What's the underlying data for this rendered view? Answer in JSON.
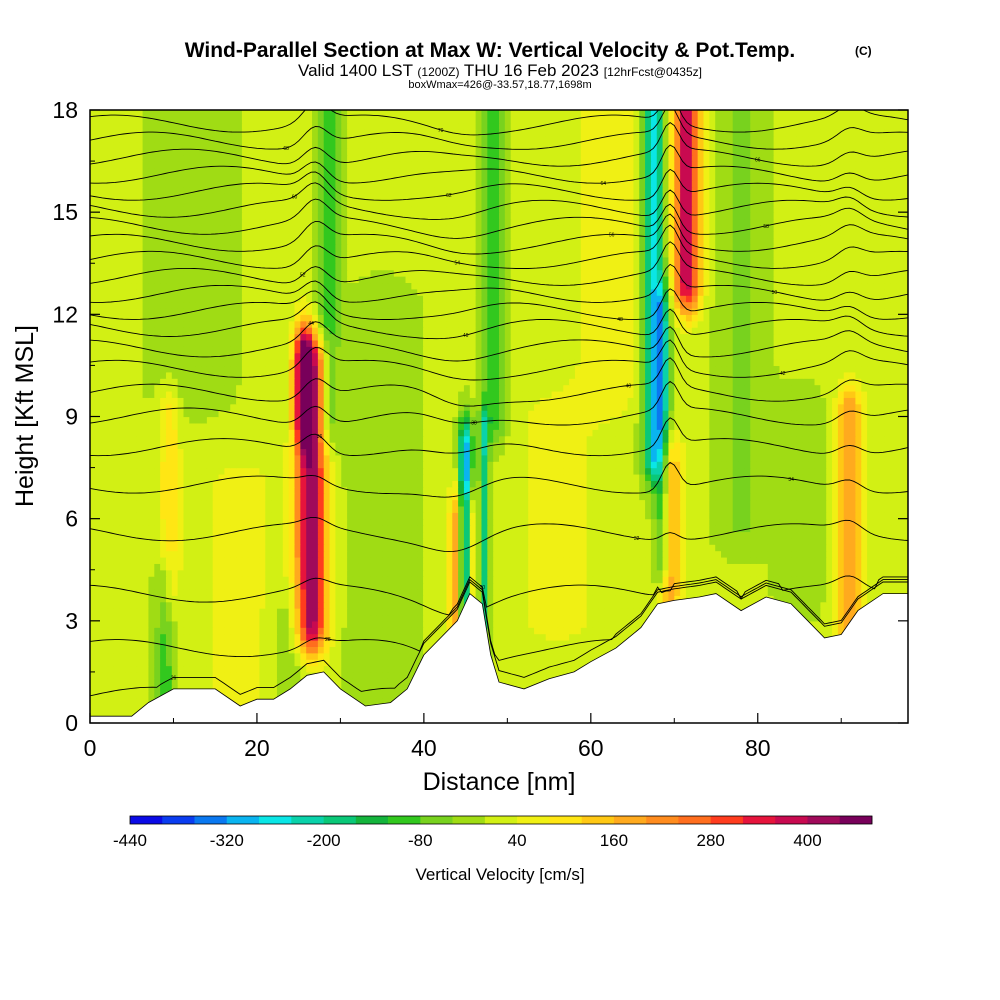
{
  "title": {
    "main": "Wind-Parallel Section at Max W: Vertical Velocity & Pot.Temp.",
    "copyright": "(C)",
    "valid_prefix": "Valid 1400 LST",
    "valid_z": "(1200Z)",
    "valid_date": "THU 16 Feb 2023",
    "forecast": "[12hrFcst@0435z]",
    "box_info": "boxWmax=426@-33.57,18.77,1698m"
  },
  "colorbar": {
    "label": "Vertical Velocity [cm/s]",
    "tick_labels": [
      "-440",
      "-320",
      "-200",
      "-80",
      "40",
      "160",
      "280",
      "400"
    ],
    "colors": [
      "#0a0ae6",
      "#0a3cf0",
      "#0a78f0",
      "#0ab4f0",
      "#0ae6e6",
      "#0ad2aa",
      "#0ac878",
      "#14b43c",
      "#32c81e",
      "#78d21e",
      "#a0dc14",
      "#d2f014",
      "#f0f014",
      "#ffe614",
      "#ffc814",
      "#ffaa1e",
      "#ff8c1e",
      "#ff6e1e",
      "#ff3c1e",
      "#e6143c",
      "#c80a50",
      "#a00a5a",
      "#78005a"
    ]
  },
  "chart_data": {
    "type": "heatmap",
    "title": "Wind-Parallel Section at Max W: Vertical Velocity & Pot.Temp.",
    "xlabel": "Distance [nm]",
    "ylabel": "Height [Kft MSL]",
    "xlim": [
      0,
      98
    ],
    "ylim": [
      0,
      18
    ],
    "x_ticks": [
      0,
      20,
      40,
      60,
      80
    ],
    "y_ticks": [
      0,
      3,
      6,
      9,
      12,
      15,
      18
    ],
    "color_scale": {
      "min": -440,
      "max": 480,
      "step": 40,
      "units": "cm/s"
    },
    "max_w": {
      "value": 426,
      "lat": -33.57,
      "lon": 18.77,
      "height_m": 1698
    },
    "features": [
      {
        "x": 26.5,
        "y_bottom": 3,
        "y_top": 10.5,
        "w": 420,
        "width": 1.8
      },
      {
        "x": 25.5,
        "y_bottom": 9,
        "y_top": 11,
        "w": 240,
        "width": 1.0
      },
      {
        "x": 71.5,
        "y_bottom": 13,
        "y_top": 18,
        "w": 380,
        "width": 1.6
      },
      {
        "x": 69.5,
        "y_bottom": 4,
        "y_top": 7.5,
        "w": 180,
        "width": 1.4
      },
      {
        "x": 91,
        "y_bottom": 3,
        "y_top": 9,
        "w": 200,
        "width": 1.5
      },
      {
        "x": 45.5,
        "y_bottom": 2.5,
        "y_top": 6,
        "w": 160,
        "width": 1.0
      },
      {
        "x": 43.8,
        "y_bottom": 2.5,
        "y_top": 6,
        "w": 180,
        "width": 0.8
      },
      {
        "x": 9.5,
        "y_bottom": 4,
        "y_top": 9,
        "w": 100,
        "width": 1.2
      },
      {
        "x": 67.5,
        "y_bottom": 8,
        "y_top": 18,
        "w": -260,
        "width": 1.3
      },
      {
        "x": 68.5,
        "y_bottom": 5,
        "y_top": 12,
        "w": -180,
        "width": 1.0
      },
      {
        "x": 45.0,
        "y_bottom": 2.0,
        "y_top": 8.0,
        "w": -340,
        "width": 0.8
      },
      {
        "x": 47.2,
        "y_bottom": 2.5,
        "y_top": 8.5,
        "w": -200,
        "width": 0.6
      },
      {
        "x": 28.5,
        "y_bottom": 9,
        "y_top": 18,
        "w": -130,
        "width": 1.3
      },
      {
        "x": 48.5,
        "y_bottom": 9,
        "y_top": 18,
        "w": -120,
        "width": 1.4
      },
      {
        "x": 9,
        "y_bottom": 1,
        "y_top": 4,
        "w": -110,
        "width": 1.2
      },
      {
        "x": 24,
        "y_bottom": 0.5,
        "y_top": 3,
        "w": -60,
        "width": 2.0
      },
      {
        "x": 35,
        "y_bottom": 1,
        "y_top": 12,
        "w": -50,
        "width": 4.0
      },
      {
        "x": 78,
        "y_bottom": 6,
        "y_top": 18,
        "w": -60,
        "width": 3.0
      },
      {
        "x": 85,
        "y_bottom": 4,
        "y_top": 9,
        "w": -40,
        "width": 3.0
      },
      {
        "x": 12,
        "y_bottom": 10,
        "y_top": 18,
        "w": -40,
        "width": 5.0
      },
      {
        "x": 56,
        "y_bottom": 3,
        "y_top": 9,
        "w": 40,
        "width": 6.0
      },
      {
        "x": 18,
        "y_bottom": 1,
        "y_top": 7,
        "w": 40,
        "width": 6.0
      },
      {
        "x": 62,
        "y_bottom": 10,
        "y_top": 18,
        "w": 60,
        "width": 4.0
      }
    ],
    "terrain": [
      [
        0,
        0.2
      ],
      [
        5,
        0.2
      ],
      [
        7,
        0.6
      ],
      [
        10,
        1.0
      ],
      [
        15,
        1.0
      ],
      [
        18,
        0.5
      ],
      [
        20,
        0.7
      ],
      [
        22,
        0.7
      ],
      [
        24,
        1.0
      ],
      [
        26,
        1.4
      ],
      [
        28,
        1.5
      ],
      [
        30,
        1.0
      ],
      [
        33,
        0.5
      ],
      [
        36,
        0.6
      ],
      [
        38,
        1.0
      ],
      [
        40,
        2.0
      ],
      [
        42,
        2.5
      ],
      [
        44,
        3.0
      ],
      [
        45.5,
        3.8
      ],
      [
        47,
        3.5
      ],
      [
        48,
        2.0
      ],
      [
        49,
        1.2
      ],
      [
        52,
        1.0
      ],
      [
        55,
        1.3
      ],
      [
        58,
        1.5
      ],
      [
        60,
        1.8
      ],
      [
        63,
        2.2
      ],
      [
        66,
        2.8
      ],
      [
        68,
        3.5
      ],
      [
        70,
        3.6
      ],
      [
        73,
        3.7
      ],
      [
        75,
        3.8
      ],
      [
        78,
        3.3
      ],
      [
        81,
        3.7
      ],
      [
        84,
        3.5
      ],
      [
        86,
        3.0
      ],
      [
        88,
        2.5
      ],
      [
        90,
        2.6
      ],
      [
        92,
        3.3
      ],
      [
        95,
        3.8
      ],
      [
        98,
        3.8
      ]
    ],
    "isentropes": [
      {
        "label": "26",
        "y0": 0.8
      },
      {
        "label": "28",
        "y0": 2.2
      },
      {
        "label": "30",
        "y0": 3.8
      },
      {
        "label": "32",
        "y0": 5.6
      },
      {
        "label": "34",
        "y0": 7.0
      },
      {
        "label": "36",
        "y0": 8.1
      },
      {
        "label": "38",
        "y0": 9.0
      },
      {
        "label": "40",
        "y0": 9.7
      },
      {
        "label": "42",
        "y0": 10.4
      },
      {
        "label": "44",
        "y0": 11.0
      },
      {
        "label": "46",
        "y0": 11.6
      },
      {
        "label": "48",
        "y0": 12.1
      },
      {
        "label": "50",
        "y0": 12.6
      },
      {
        "label": "52",
        "y0": 13.1
      },
      {
        "label": "54",
        "y0": 13.6
      },
      {
        "label": "56",
        "y0": 14.1
      },
      {
        "label": "58",
        "y0": 14.6
      },
      {
        "label": "60",
        "y0": 15.1
      },
      {
        "label": "62",
        "y0": 15.6
      },
      {
        "label": "64",
        "y0": 16.1
      },
      {
        "label": "66",
        "y0": 16.6
      },
      {
        "label": "68",
        "y0": 17.1
      },
      {
        "label": "70",
        "y0": 17.6
      }
    ]
  }
}
